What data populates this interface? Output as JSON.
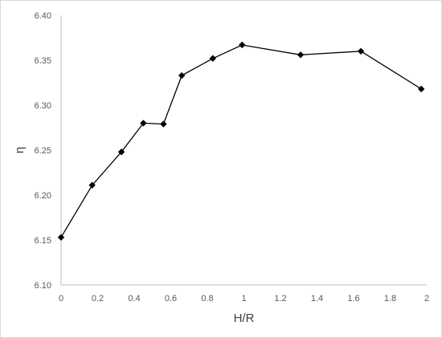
{
  "chart_data": {
    "type": "line",
    "title": "",
    "xlabel": "H/R",
    "ylabel": "η",
    "xlim": [
      0,
      2
    ],
    "ylim": [
      6.1,
      6.4
    ],
    "x_ticks": [
      "0",
      "0.2",
      "0.4",
      "0.6",
      "0.8",
      "1",
      "1.2",
      "1.4",
      "1.6",
      "1.8",
      "2"
    ],
    "y_ticks": [
      "6.10",
      "6.15",
      "6.20",
      "6.25",
      "6.30",
      "6.35",
      "6.40"
    ],
    "grid": "none",
    "legend": "none",
    "marker": "diamond",
    "line_color": "#000000",
    "axis_color": "#bfbfbf",
    "series": [
      {
        "x": [
          0,
          0.17,
          0.33,
          0.45,
          0.56,
          0.66,
          0.83,
          0.99,
          1.31,
          1.64,
          1.97
        ],
        "y": [
          6.153,
          6.211,
          6.248,
          6.28,
          6.279,
          6.333,
          6.352,
          6.367,
          6.356,
          6.36,
          6.318
        ]
      }
    ]
  }
}
